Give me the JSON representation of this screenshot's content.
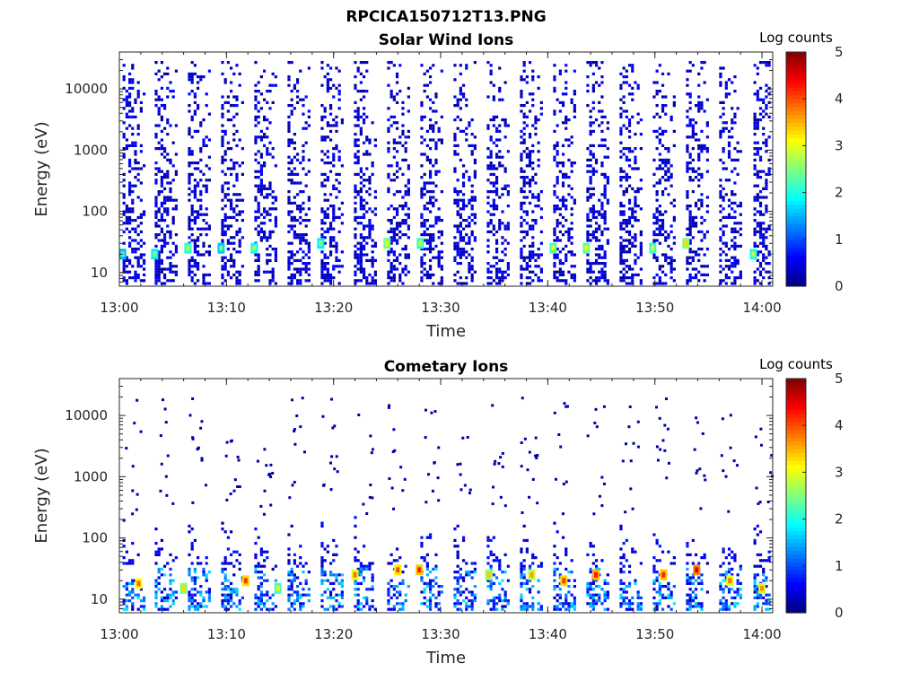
{
  "figure_title": "RPCICA150712T13.PNG",
  "colorbar": {
    "title": "Log counts",
    "ticks": [
      "0",
      "1",
      "2",
      "3",
      "4",
      "5"
    ],
    "range": [
      0,
      5
    ],
    "colormap": "jet"
  },
  "chart_data": [
    {
      "type": "heatmap",
      "title": "Solar Wind Ions",
      "xlabel": "Time",
      "ylabel": "Energy (eV)",
      "x_ticks": [
        "13:00",
        "13:10",
        "13:20",
        "13:30",
        "13:40",
        "13:50",
        "14:00"
      ],
      "y_ticks": [
        "10",
        "100",
        "1000",
        "10000"
      ],
      "y_scale": "log",
      "ylim": [
        6,
        40000
      ],
      "xlim": [
        "13:00",
        "14:01"
      ],
      "value_label": "Log counts",
      "vlim": [
        0,
        5
      ],
      "sweep_times_min": [
        0.3,
        3.3,
        6.4,
        9.5,
        12.6,
        15.7,
        18.8,
        21.9,
        25.0,
        28.1,
        31.2,
        34.3,
        37.4,
        40.5,
        43.6,
        46.7,
        49.8,
        52.9,
        56.0,
        59.2
      ],
      "cells": [
        {
          "t": 0.3,
          "e": 20,
          "v": 1.5
        },
        {
          "t": 3.3,
          "e": 20,
          "v": 1.8
        },
        {
          "t": 6.4,
          "e": 25,
          "v": 2.0
        },
        {
          "t": 9.5,
          "e": 25,
          "v": 1.6
        },
        {
          "t": 12.6,
          "e": 25,
          "v": 1.9
        },
        {
          "t": 18.8,
          "e": 30,
          "v": 1.8
        },
        {
          "t": 25.0,
          "e": 30,
          "v": 2.4
        },
        {
          "t": 28.1,
          "e": 30,
          "v": 2.1
        },
        {
          "t": 40.5,
          "e": 25,
          "v": 2.2
        },
        {
          "t": 43.6,
          "e": 25,
          "v": 2.3
        },
        {
          "t": 49.8,
          "e": 25,
          "v": 2.1
        },
        {
          "t": 52.9,
          "e": 30,
          "v": 2.5
        },
        {
          "t": 59.2,
          "e": 20,
          "v": 2.0
        }
      ]
    },
    {
      "type": "heatmap",
      "title": "Cometary Ions",
      "xlabel": "Time",
      "ylabel": "Energy (eV)",
      "x_ticks": [
        "13:00",
        "13:10",
        "13:20",
        "13:30",
        "13:40",
        "13:50",
        "14:00"
      ],
      "y_ticks": [
        "10",
        "100",
        "1000",
        "10000"
      ],
      "y_scale": "log",
      "ylim": [
        6,
        40000
      ],
      "xlim": [
        "13:00",
        "14:01"
      ],
      "value_label": "Log counts",
      "vlim": [
        0,
        5
      ],
      "sweep_times_min": [
        0.3,
        3.3,
        6.4,
        9.5,
        12.6,
        15.7,
        18.8,
        21.9,
        25.0,
        28.1,
        31.2,
        34.3,
        37.4,
        40.5,
        43.6,
        46.7,
        49.8,
        52.9,
        56.0,
        59.2
      ],
      "cells": [
        {
          "t": 1.8,
          "e": 18,
          "v": 3.1
        },
        {
          "t": 6.0,
          "e": 15,
          "v": 2.5
        },
        {
          "t": 11.8,
          "e": 20,
          "v": 3.3
        },
        {
          "t": 14.8,
          "e": 15,
          "v": 2.2
        },
        {
          "t": 22.0,
          "e": 25,
          "v": 3.0
        },
        {
          "t": 26.0,
          "e": 30,
          "v": 3.2
        },
        {
          "t": 28.0,
          "e": 30,
          "v": 3.4
        },
        {
          "t": 34.5,
          "e": 25,
          "v": 2.6
        },
        {
          "t": 38.5,
          "e": 25,
          "v": 2.8
        },
        {
          "t": 41.5,
          "e": 20,
          "v": 3.3
        },
        {
          "t": 44.5,
          "e": 25,
          "v": 3.5
        },
        {
          "t": 50.8,
          "e": 25,
          "v": 3.4
        },
        {
          "t": 53.9,
          "e": 30,
          "v": 3.7
        },
        {
          "t": 57.0,
          "e": 20,
          "v": 3.0
        },
        {
          "t": 60.0,
          "e": 15,
          "v": 2.9
        }
      ]
    }
  ]
}
